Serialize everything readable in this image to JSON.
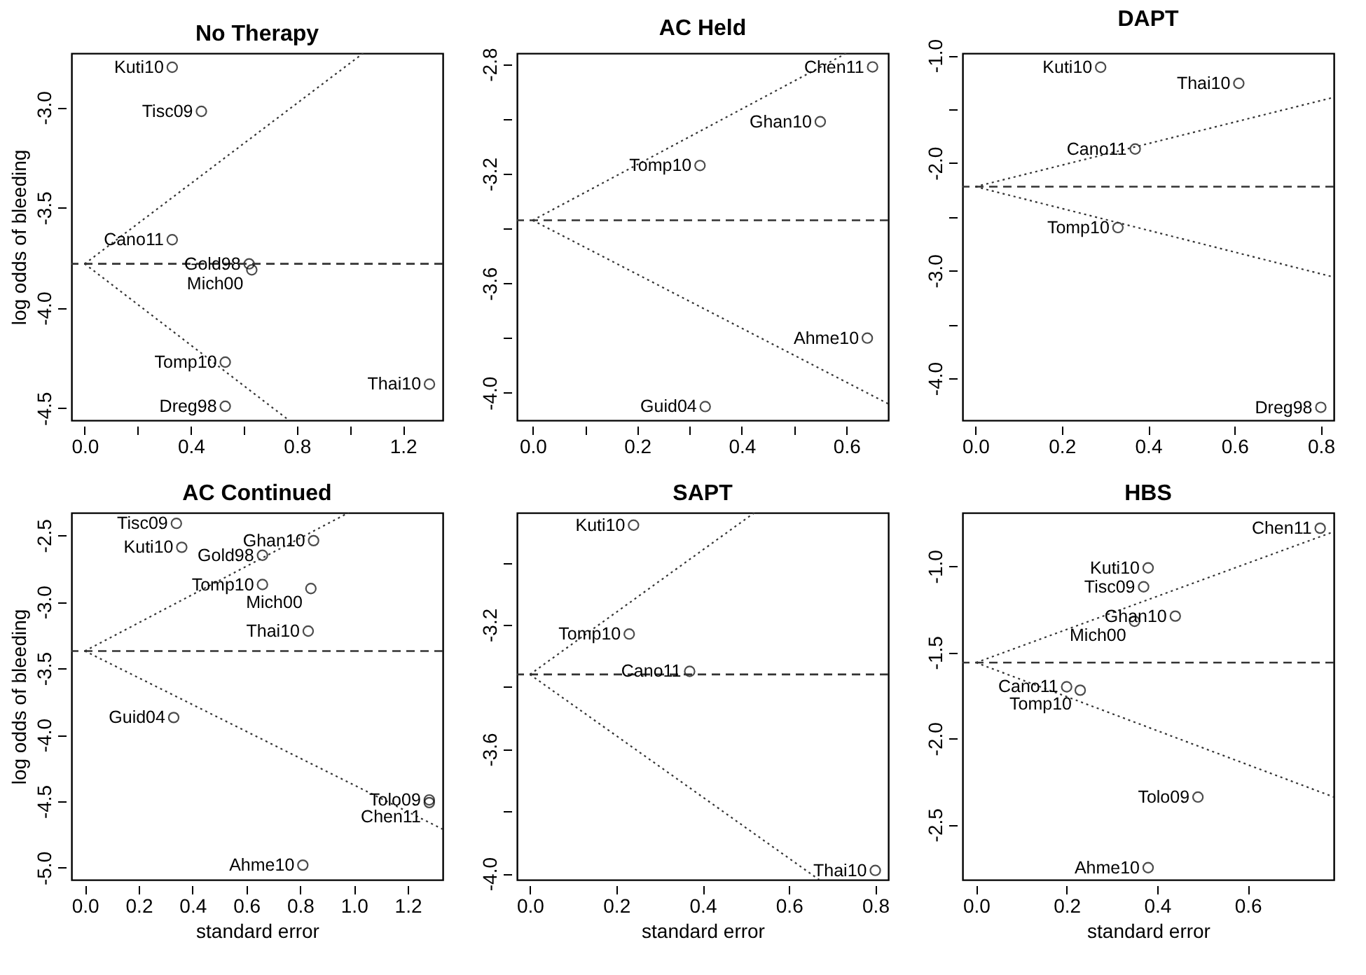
{
  "chart_data": [
    {
      "type": "scatter",
      "title": "No Therapy",
      "ylabel": "log odds of bleeding",
      "xlim": [
        -0.05,
        1.35
      ],
      "ylim": [
        -4.56,
        -2.73
      ],
      "xticks": [
        {
          "value": 0,
          "label": "0.0"
        },
        {
          "value": 0.2,
          "label": null
        },
        0.4,
        {
          "value": 0.6,
          "label": null
        },
        0.8,
        {
          "value": 1,
          "label": null
        },
        1.2
      ],
      "yticks": [
        {
          "value": -3,
          "label": "-3.0"
        },
        -3.5,
        {
          "value": -4,
          "label": "-4.0"
        },
        -4.5
      ],
      "series": [
        {
          "marker": "circle",
          "color": "#000000",
          "x": [
            0.33,
            0.44,
            0.33,
            0.62,
            0.63,
            0.53,
            0.53,
            1.3
          ],
          "values": [
            -2.8,
            -3.02,
            -3.66,
            -3.78,
            -3.81,
            -4.27,
            -4.49,
            -4.38
          ]
        },
        {
          "type": "line",
          "color": "#333333",
          "line_style": "dotted",
          "x": [
            0,
            1.05
          ],
          "values": [
            -3.78,
            -2.73
          ]
        },
        {
          "type": "line",
          "color": "#333333",
          "line_style": "dotted",
          "x": [
            0,
            0.77
          ],
          "values": [
            -3.78,
            -4.56
          ]
        }
      ],
      "ref_lines": [
        {
          "axis": "y",
          "value": -3.78,
          "line_style": "dashed",
          "color": "#333333"
        }
      ],
      "annotations": [
        {
          "text": "Kuti10",
          "x": 0.33,
          "y": -2.8
        },
        {
          "text": "Tisc09",
          "x": 0.44,
          "y": -3.02
        },
        {
          "text": "Cano11",
          "x": 0.33,
          "y": -3.66
        },
        {
          "text": "Gold98",
          "x": 0.62,
          "y": -3.78
        },
        {
          "text": "Mich00",
          "x": 0.63,
          "y": -3.81
        },
        {
          "text": "Tomp10",
          "x": 0.53,
          "y": -4.27
        },
        {
          "text": "Dreg98",
          "x": 0.53,
          "y": -4.49
        },
        {
          "text": "Thai10",
          "x": 1.3,
          "y": -4.38
        }
      ]
    },
    {
      "type": "scatter",
      "title": "AC Held",
      "xlim": [
        -0.03,
        0.68
      ],
      "ylim": [
        -4.1,
        -2.76
      ],
      "xticks": [
        {
          "value": 0,
          "label": "0.0"
        },
        {
          "value": 0.1,
          "label": null
        },
        0.2,
        {
          "value": 0.3,
          "label": null
        },
        0.4,
        {
          "value": 0.5,
          "label": null
        },
        0.6
      ],
      "yticks": [
        -2.8,
        {
          "value": -3,
          "label": null
        },
        -3.2,
        {
          "value": -3.4,
          "label": null
        },
        -3.6,
        {
          "value": -3.8,
          "label": null
        },
        {
          "value": -4,
          "label": "-4.0"
        }
      ],
      "series": [
        {
          "marker": "circle",
          "color": "#000000",
          "x": [
            0.65,
            0.55,
            0.32,
            0.64,
            0.33
          ],
          "values": [
            -2.81,
            -3.01,
            -3.17,
            -3.8,
            -4.05
          ]
        },
        {
          "type": "line",
          "color": "#333333",
          "line_style": "dotted",
          "x": [
            0,
            0.6
          ],
          "values": [
            -3.37,
            -2.76
          ]
        },
        {
          "type": "line",
          "color": "#333333",
          "line_style": "dotted",
          "x": [
            0,
            0.68
          ],
          "values": [
            -3.37,
            -4.04
          ]
        }
      ],
      "ref_lines": [
        {
          "axis": "y",
          "value": -3.37,
          "line_style": "dashed",
          "color": "#333333"
        }
      ],
      "annotations": [
        {
          "text": "Chen11",
          "x": 0.65,
          "y": -2.81
        },
        {
          "text": "Ghan10",
          "x": 0.55,
          "y": -3.01
        },
        {
          "text": "Tomp10",
          "x": 0.32,
          "y": -3.17
        },
        {
          "text": "Ahme10",
          "x": 0.64,
          "y": -3.8
        },
        {
          "text": "Guid04",
          "x": 0.33,
          "y": -4.05
        }
      ]
    },
    {
      "type": "scatter",
      "title": "DAPT",
      "xlim": [
        -0.03,
        0.83
      ],
      "ylim": [
        -4.39,
        -0.98
      ],
      "xticks": [
        {
          "value": 0,
          "label": "0.0"
        },
        0.2,
        0.4,
        0.6,
        0.8
      ],
      "yticks": [
        {
          "value": -1,
          "label": "-1.0"
        },
        {
          "value": -1.5,
          "label": null
        },
        {
          "value": -2,
          "label": "-2.0"
        },
        {
          "value": -2.5,
          "label": null
        },
        {
          "value": -3,
          "label": "-3.0"
        },
        {
          "value": -3.5,
          "label": null
        },
        {
          "value": -4,
          "label": "-4.0"
        }
      ],
      "series": [
        {
          "marker": "circle",
          "color": "#000000",
          "x": [
            0.29,
            0.61,
            0.37,
            0.33,
            0.8
          ],
          "values": [
            -1.11,
            -1.26,
            -1.87,
            -2.6,
            -4.27
          ]
        },
        {
          "type": "line",
          "color": "#333333",
          "line_style": "dotted",
          "x": [
            0,
            0.83
          ],
          "values": [
            -2.22,
            -1.39
          ]
        },
        {
          "type": "line",
          "color": "#333333",
          "line_style": "dotted",
          "x": [
            0,
            0.83
          ],
          "values": [
            -2.22,
            -3.06
          ]
        }
      ],
      "ref_lines": [
        {
          "axis": "y",
          "value": -2.22,
          "line_style": "dashed",
          "color": "#333333"
        }
      ],
      "annotations": [
        {
          "text": "Kuti10",
          "x": 0.29,
          "y": -1.11
        },
        {
          "text": "Thai10",
          "x": 0.61,
          "y": -1.26
        },
        {
          "text": "Cano11",
          "x": 0.37,
          "y": -1.87
        },
        {
          "text": "Tomp10",
          "x": 0.33,
          "y": -2.6
        },
        {
          "text": "Dreg98",
          "x": 0.8,
          "y": -4.27
        }
      ]
    },
    {
      "type": "scatter",
      "title": "AC Continued",
      "xlabel": "standard error",
      "ylabel": "log odds of bleeding",
      "xlim": [
        -0.05,
        1.33
      ],
      "ylim": [
        -5.09,
        -2.33
      ],
      "xticks": [
        {
          "value": 0,
          "label": "0.0"
        },
        0.2,
        0.4,
        0.6,
        0.8,
        {
          "value": 1,
          "label": "1.0"
        },
        1.2
      ],
      "yticks": [
        -2.5,
        {
          "value": -3,
          "label": "-3.0"
        },
        -3.5,
        {
          "value": -4,
          "label": "-4.0"
        },
        -4.5,
        {
          "value": -5,
          "label": "-5.0"
        }
      ],
      "series": [
        {
          "marker": "circle",
          "color": "#000000",
          "x": [
            0.34,
            0.36,
            0.85,
            0.66,
            0.66,
            0.84,
            0.83,
            0.33,
            1.28,
            1.28,
            0.81
          ],
          "values": [
            -2.41,
            -2.59,
            -2.54,
            -2.65,
            -2.87,
            -2.9,
            -3.22,
            -3.87,
            -4.49,
            -4.51,
            -4.98
          ]
        },
        {
          "type": "line",
          "color": "#333333",
          "line_style": "dotted",
          "x": [
            0,
            0.98
          ],
          "values": [
            -3.37,
            -2.33
          ]
        },
        {
          "type": "line",
          "color": "#333333",
          "line_style": "dotted",
          "x": [
            0,
            1.33
          ],
          "values": [
            -3.37,
            -4.71
          ]
        }
      ],
      "ref_lines": [
        {
          "axis": "y",
          "value": -3.37,
          "line_style": "dashed",
          "color": "#333333"
        }
      ],
      "annotations": [
        {
          "text": "Tisc09",
          "x": 0.34,
          "y": -2.41
        },
        {
          "text": "Kuti10",
          "x": 0.36,
          "y": -2.59
        },
        {
          "text": "Ghan10",
          "x": 0.85,
          "y": -2.54
        },
        {
          "text": "Gold98",
          "x": 0.66,
          "y": -2.65
        },
        {
          "text": "Tomp10",
          "x": 0.66,
          "y": -2.87
        },
        {
          "text": "Mich00",
          "x": 0.84,
          "y": -2.9
        },
        {
          "text": "Thai10",
          "x": 0.83,
          "y": -3.22
        },
        {
          "text": "Guid04",
          "x": 0.33,
          "y": -3.87
        },
        {
          "text": "Tolo09",
          "x": 1.28,
          "y": -4.49
        },
        {
          "text": "Chen11",
          "x": 1.28,
          "y": -4.51
        },
        {
          "text": "Ahme10",
          "x": 0.81,
          "y": -4.98
        }
      ]
    },
    {
      "type": "scatter",
      "title": "SAPT",
      "xlabel": "standard error",
      "xlim": [
        -0.03,
        0.83
      ],
      "ylim": [
        -4.02,
        -2.84
      ],
      "xticks": [
        {
          "value": 0,
          "label": "0.0"
        },
        0.2,
        0.4,
        0.6,
        0.8
      ],
      "yticks": [
        {
          "value": -3,
          "label": null
        },
        -3.2,
        {
          "value": -3.4,
          "label": null
        },
        -3.6,
        {
          "value": -3.8,
          "label": null
        },
        {
          "value": -4,
          "label": "-4.0"
        }
      ],
      "series": [
        {
          "marker": "circle",
          "color": "#000000",
          "x": [
            0.24,
            0.23,
            0.37,
            0.8
          ],
          "values": [
            -2.88,
            -3.23,
            -3.35,
            -3.99
          ]
        },
        {
          "type": "line",
          "color": "#333333",
          "line_style": "dotted",
          "x": [
            0,
            0.52
          ],
          "values": [
            -3.36,
            -2.84
          ]
        },
        {
          "type": "line",
          "color": "#333333",
          "line_style": "dotted",
          "x": [
            0,
            0.67
          ],
          "values": [
            -3.36,
            -4.02
          ]
        }
      ],
      "ref_lines": [
        {
          "axis": "y",
          "value": -3.36,
          "line_style": "dashed",
          "color": "#333333"
        }
      ],
      "annotations": [
        {
          "text": "Kuti10",
          "x": 0.24,
          "y": -2.88
        },
        {
          "text": "Tomp10",
          "x": 0.23,
          "y": -3.23
        },
        {
          "text": "Cano11",
          "x": 0.37,
          "y": -3.35
        },
        {
          "text": "Thai10",
          "x": 0.8,
          "y": -3.99
        }
      ]
    },
    {
      "type": "scatter",
      "title": "HBS",
      "xlabel": "standard error",
      "xlim": [
        -0.03,
        0.79
      ],
      "ylim": [
        -2.82,
        -0.69
      ],
      "xticks": [
        {
          "value": 0,
          "label": "0.0"
        },
        0.2,
        0.4,
        0.6
      ],
      "yticks": [
        {
          "value": -1,
          "label": "-1.0"
        },
        -1.5,
        {
          "value": -2,
          "label": "-2.0"
        },
        -2.5
      ],
      "series": [
        {
          "marker": "circle",
          "color": "#000000",
          "x": [
            0.76,
            0.38,
            0.37,
            0.44,
            0.35,
            0.2,
            0.23,
            0.49,
            0.38
          ],
          "values": [
            -0.78,
            -1.01,
            -1.12,
            -1.29,
            -1.32,
            -1.7,
            -1.72,
            -2.34,
            -2.75
          ]
        },
        {
          "type": "line",
          "color": "#333333",
          "line_style": "dotted",
          "x": [
            0,
            0.79
          ],
          "values": [
            -1.56,
            -0.8
          ]
        },
        {
          "type": "line",
          "color": "#333333",
          "line_style": "dotted",
          "x": [
            0,
            0.79
          ],
          "values": [
            -1.56,
            -2.34
          ]
        }
      ],
      "ref_lines": [
        {
          "axis": "y",
          "value": -1.56,
          "line_style": "dashed",
          "color": "#333333"
        }
      ],
      "annotations": [
        {
          "text": "Chen11",
          "x": 0.76,
          "y": -0.78
        },
        {
          "text": "Kuti10",
          "x": 0.38,
          "y": -1.01
        },
        {
          "text": "Tisc09",
          "x": 0.37,
          "y": -1.12
        },
        {
          "text": "Ghan10",
          "x": 0.44,
          "y": -1.29
        },
        {
          "text": "Mich00",
          "x": 0.35,
          "y": -1.32
        },
        {
          "text": "Cano11",
          "x": 0.2,
          "y": -1.7
        },
        {
          "text": "Tomp10",
          "x": 0.23,
          "y": -1.72
        },
        {
          "text": "Tolo09",
          "x": 0.49,
          "y": -2.34
        },
        {
          "text": "Ahme10",
          "x": 0.38,
          "y": -2.75
        }
      ]
    }
  ]
}
